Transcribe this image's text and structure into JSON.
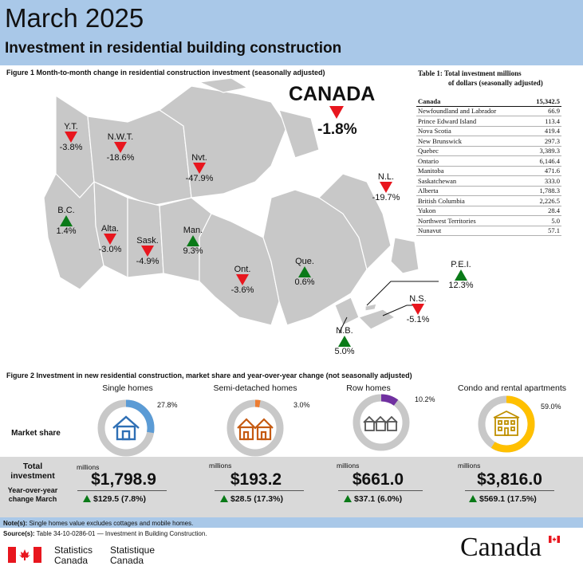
{
  "header": {
    "title": "March 2025",
    "subtitle": "Investment in residential building construction"
  },
  "colors": {
    "header_bg": "#a9c8e8",
    "decrease": "#e8161e",
    "increase": "#0a7a18",
    "map_land": "#c8c8c8",
    "single_homes": "#5b9bd5",
    "semi_detached": "#ed7d31",
    "row_homes": "#7030a0",
    "condo_rental": "#ffc000"
  },
  "figure1": {
    "caption": "Figure 1  Month-to-month change in residential construction investment (seasonally adjusted)",
    "canada": {
      "label": "CANADA",
      "change": "-1.8%",
      "direction": "down"
    },
    "provinces": [
      {
        "label": "Y.T.",
        "change": "-3.8%",
        "direction": "down"
      },
      {
        "label": "N.W.T.",
        "change": "-18.6%",
        "direction": "down"
      },
      {
        "label": "Nvt.",
        "change": "-47.9%",
        "direction": "down"
      },
      {
        "label": "B.C.",
        "change": "1.4%",
        "direction": "up"
      },
      {
        "label": "Alta.",
        "change": "-3.0%",
        "direction": "down"
      },
      {
        "label": "Sask.",
        "change": "-4.9%",
        "direction": "down"
      },
      {
        "label": "Man.",
        "change": "9.3%",
        "direction": "up"
      },
      {
        "label": "Ont.",
        "change": "-3.6%",
        "direction": "down"
      },
      {
        "label": "Que.",
        "change": "0.6%",
        "direction": "up"
      },
      {
        "label": "N.L.",
        "change": "-19.7%",
        "direction": "down"
      },
      {
        "label": "P.E.I.",
        "change": "12.3%",
        "direction": "up"
      },
      {
        "label": "N.S.",
        "change": "-5.1%",
        "direction": "down"
      },
      {
        "label": "N.B.",
        "change": "5.0%",
        "direction": "up"
      }
    ]
  },
  "table1": {
    "title_line1": "Table 1: Total investment millions",
    "title_line2": "of dollars (seasonally adjusted)",
    "rows": [
      {
        "region": "Canada",
        "value": "15,342.5"
      },
      {
        "region": "Newfoundland and Labrador",
        "value": "66.9"
      },
      {
        "region": "Prince Edward Island",
        "value": "113.4"
      },
      {
        "region": "Nova Scotia",
        "value": "419.4"
      },
      {
        "region": "New Brunswick",
        "value": "297.3"
      },
      {
        "region": "Quebec",
        "value": "3,389.3"
      },
      {
        "region": "Ontario",
        "value": "6,146.4"
      },
      {
        "region": "Manitoba",
        "value": "471.6"
      },
      {
        "region": "Saskatchewan",
        "value": "333.0"
      },
      {
        "region": "Alberta",
        "value": "1,788.3"
      },
      {
        "region": "British Columbia",
        "value": "2,226.5"
      },
      {
        "region": "Yukon",
        "value": "28.4"
      },
      {
        "region": "Northwest Territories",
        "value": "5.0"
      },
      {
        "region": "Nunavut",
        "value": "57.1"
      }
    ]
  },
  "figure2": {
    "caption": "Figure 2 Investment in new residential construction, market share and year-over-year change (not seasonally adjusted)",
    "market_share_label": "Market share",
    "total_investment_label": "Total investment",
    "yoy_label": "Year-over-year change March",
    "millions_label": "millions",
    "segments": [
      {
        "name": "Single homes",
        "share_pct": 27.8,
        "share_label": "27.8%",
        "amount": "$1,798.9",
        "yoy": "$129.5 (7.8%)",
        "icon": "house-icon"
      },
      {
        "name": "Semi-detached homes",
        "share_pct": 3.0,
        "share_label": "3.0%",
        "amount": "$193.2",
        "yoy": "$28.5 (17.3%)",
        "icon": "semi-detached-icon"
      },
      {
        "name": "Row homes",
        "share_pct": 10.2,
        "share_label": "10.2%",
        "amount": "$661.0",
        "yoy": "$37.1 (6.0%)",
        "icon": "row-homes-icon"
      },
      {
        "name": "Condo and rental apartments",
        "share_pct": 59.0,
        "share_label": "59.0%",
        "amount": "$3,816.0",
        "yoy": "$569.1 (17.5%)",
        "icon": "apartment-icon"
      }
    ]
  },
  "notes": {
    "note_label": "Note(s):",
    "note_text": "Single homes value excludes cottages and mobile homes.",
    "source_label": "Source(s):",
    "source_text": "Table 34-10-0286-01 —  Investment in Building Construction."
  },
  "footer": {
    "statcan_en_line1": "Statistics",
    "statcan_en_line2": "Canada",
    "statcan_fr_line1": "Statistique",
    "statcan_fr_line2": "Canada",
    "wordmark": "Canada"
  }
}
